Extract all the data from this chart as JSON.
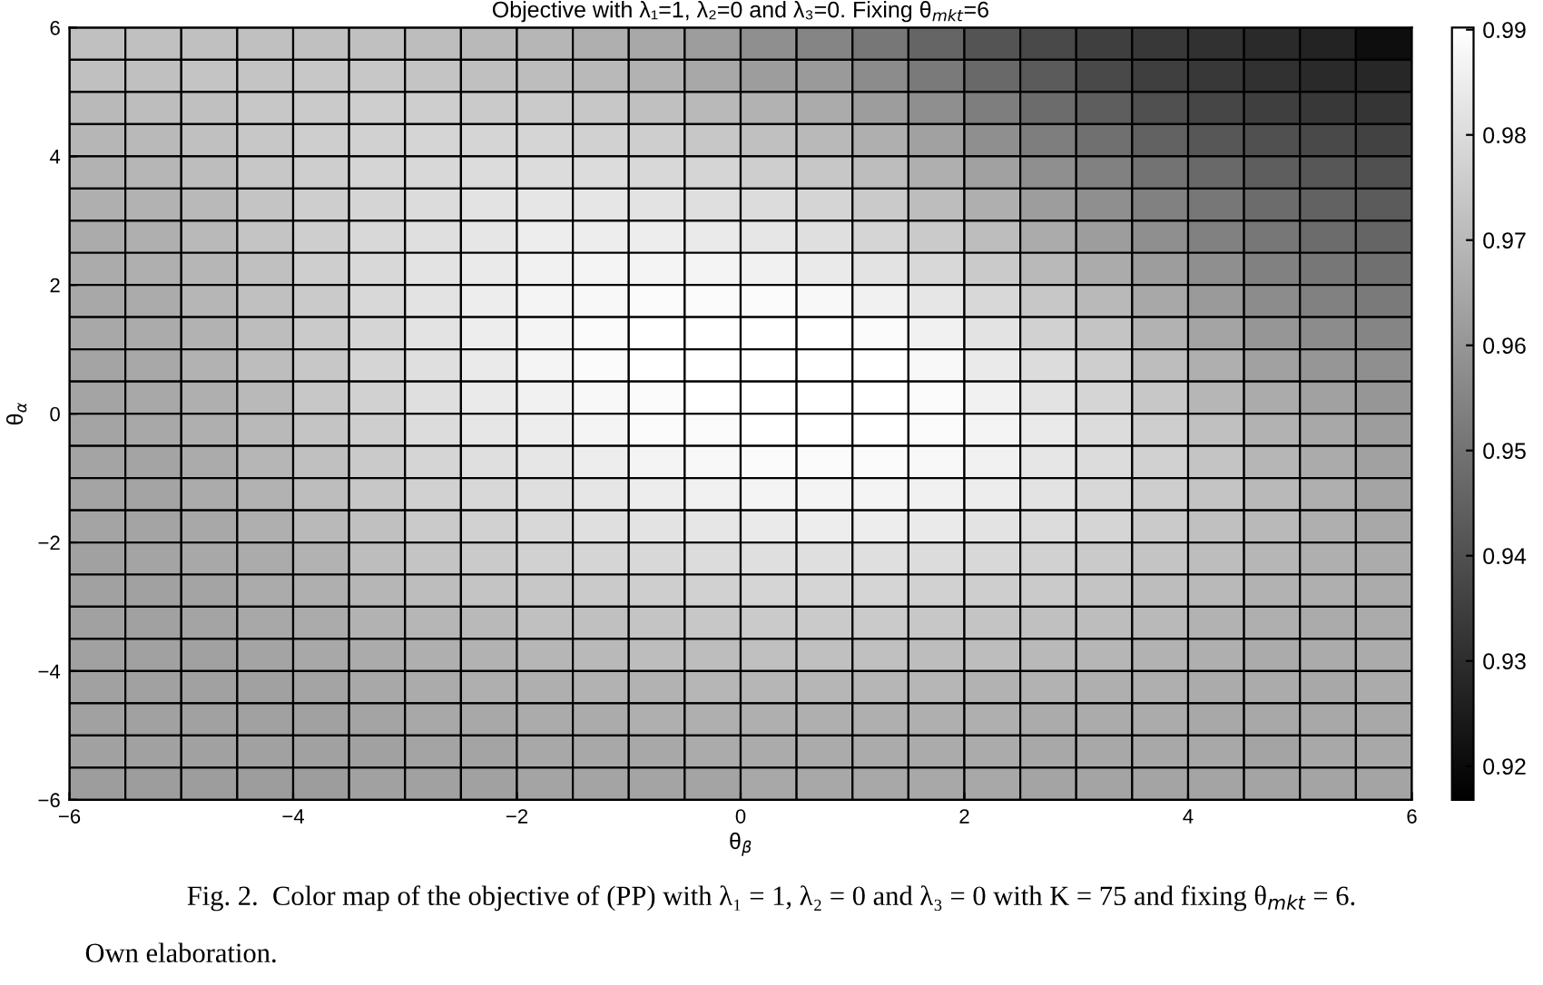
{
  "chart_data": {
    "type": "heatmap",
    "title": "Objective with λ₁=1, λ₂=0 and λ₃=0. Fixing θ$_{mkt}$=6",
    "xlabel": "θ$_{β}$",
    "ylabel": "θ$_{α}$",
    "annotations": [
      "Fig. 2.  Color map of the objective of (PP) with λ₁ = 1, λ₂ = 0 and λ₃ = 0 with K = 75 and fixing θ$_{mkt}$ = 6.",
      "Own elaboration."
    ],
    "xlim": [
      -6,
      6
    ],
    "ylim": [
      -6,
      6
    ],
    "xticks": [
      {
        "value": -6,
        "label": "−6"
      },
      {
        "value": -4,
        "label": "−4"
      },
      {
        "value": -2,
        "label": "−2"
      },
      0,
      2,
      4,
      6
    ],
    "yticks": [
      {
        "value": -6,
        "label": "−6"
      },
      {
        "value": -4,
        "label": "−4"
      },
      {
        "value": -2,
        "label": "−2"
      },
      0,
      2,
      4,
      6
    ],
    "clim": [
      0.9168,
      0.9902
    ],
    "cticks": [
      0.92,
      0.93,
      0.94,
      0.95,
      0.96,
      0.97,
      0.98,
      0.99
    ],
    "cells": [
      [
        0.972,
        0.972,
        0.972,
        0.972,
        0.972,
        0.972,
        0.971,
        0.97,
        0.969,
        0.967,
        0.965,
        0.962,
        0.958,
        0.955,
        0.951,
        0.946,
        0.941,
        0.938,
        0.935,
        0.933,
        0.931,
        0.929,
        0.927,
        0.921
      ],
      [
        0.972,
        0.972,
        0.973,
        0.973,
        0.974,
        0.974,
        0.973,
        0.972,
        0.971,
        0.97,
        0.968,
        0.965,
        0.962,
        0.961,
        0.957,
        0.952,
        0.947,
        0.943,
        0.938,
        0.935,
        0.933,
        0.931,
        0.929,
        0.928
      ],
      [
        0.97,
        0.971,
        0.972,
        0.974,
        0.975,
        0.976,
        0.976,
        0.975,
        0.975,
        0.974,
        0.972,
        0.97,
        0.968,
        0.966,
        0.962,
        0.958,
        0.953,
        0.948,
        0.944,
        0.94,
        0.937,
        0.935,
        0.933,
        0.932
      ],
      [
        0.969,
        0.97,
        0.972,
        0.974,
        0.976,
        0.977,
        0.978,
        0.978,
        0.978,
        0.977,
        0.976,
        0.974,
        0.972,
        0.97,
        0.967,
        0.963,
        0.958,
        0.953,
        0.949,
        0.945,
        0.942,
        0.94,
        0.938,
        0.936
      ],
      [
        0.968,
        0.969,
        0.971,
        0.974,
        0.976,
        0.978,
        0.979,
        0.98,
        0.98,
        0.98,
        0.979,
        0.978,
        0.976,
        0.974,
        0.971,
        0.967,
        0.963,
        0.958,
        0.954,
        0.95,
        0.947,
        0.944,
        0.942,
        0.94
      ],
      [
        0.967,
        0.968,
        0.97,
        0.973,
        0.976,
        0.978,
        0.98,
        0.982,
        0.983,
        0.983,
        0.982,
        0.981,
        0.98,
        0.978,
        0.975,
        0.971,
        0.967,
        0.962,
        0.958,
        0.954,
        0.951,
        0.948,
        0.945,
        0.943
      ],
      [
        0.966,
        0.967,
        0.97,
        0.973,
        0.976,
        0.979,
        0.981,
        0.983,
        0.985,
        0.985,
        0.985,
        0.984,
        0.983,
        0.981,
        0.978,
        0.975,
        0.971,
        0.966,
        0.962,
        0.958,
        0.954,
        0.951,
        0.948,
        0.946
      ],
      [
        0.966,
        0.967,
        0.969,
        0.972,
        0.976,
        0.979,
        0.982,
        0.984,
        0.986,
        0.987,
        0.987,
        0.987,
        0.986,
        0.984,
        0.982,
        0.979,
        0.975,
        0.97,
        0.966,
        0.962,
        0.958,
        0.954,
        0.951,
        0.949
      ],
      [
        0.965,
        0.966,
        0.969,
        0.972,
        0.975,
        0.979,
        0.982,
        0.985,
        0.987,
        0.988,
        0.989,
        0.989,
        0.989,
        0.988,
        0.986,
        0.983,
        0.979,
        0.974,
        0.97,
        0.965,
        0.961,
        0.957,
        0.954,
        0.952
      ],
      [
        0.965,
        0.966,
        0.968,
        0.971,
        0.975,
        0.978,
        0.982,
        0.985,
        0.987,
        0.989,
        0.99,
        0.99,
        0.99,
        0.99,
        0.989,
        0.986,
        0.982,
        0.977,
        0.973,
        0.968,
        0.964,
        0.96,
        0.957,
        0.955
      ],
      [
        0.964,
        0.965,
        0.968,
        0.971,
        0.974,
        0.978,
        0.981,
        0.984,
        0.987,
        0.989,
        0.99,
        0.99,
        0.99,
        0.99,
        0.99,
        0.988,
        0.984,
        0.98,
        0.976,
        0.971,
        0.967,
        0.963,
        0.96,
        0.958
      ],
      [
        0.964,
        0.965,
        0.967,
        0.97,
        0.974,
        0.977,
        0.981,
        0.984,
        0.986,
        0.988,
        0.989,
        0.99,
        0.99,
        0.99,
        0.99,
        0.989,
        0.986,
        0.982,
        0.978,
        0.974,
        0.969,
        0.966,
        0.963,
        0.96
      ],
      [
        0.964,
        0.965,
        0.967,
        0.97,
        0.973,
        0.976,
        0.98,
        0.983,
        0.985,
        0.987,
        0.989,
        0.989,
        0.99,
        0.99,
        0.99,
        0.989,
        0.987,
        0.984,
        0.98,
        0.976,
        0.972,
        0.968,
        0.965,
        0.962
      ],
      [
        0.964,
        0.964,
        0.966,
        0.969,
        0.972,
        0.975,
        0.978,
        0.981,
        0.983,
        0.985,
        0.987,
        0.988,
        0.989,
        0.989,
        0.989,
        0.988,
        0.986,
        0.983,
        0.98,
        0.977,
        0.973,
        0.969,
        0.966,
        0.963
      ],
      [
        0.964,
        0.964,
        0.966,
        0.968,
        0.971,
        0.974,
        0.977,
        0.979,
        0.981,
        0.983,
        0.985,
        0.986,
        0.987,
        0.987,
        0.987,
        0.986,
        0.985,
        0.982,
        0.979,
        0.976,
        0.973,
        0.97,
        0.967,
        0.964
      ],
      [
        0.964,
        0.964,
        0.965,
        0.967,
        0.97,
        0.972,
        0.975,
        0.977,
        0.979,
        0.981,
        0.982,
        0.983,
        0.984,
        0.985,
        0.985,
        0.984,
        0.982,
        0.98,
        0.978,
        0.975,
        0.972,
        0.97,
        0.967,
        0.965
      ],
      [
        0.963,
        0.964,
        0.965,
        0.966,
        0.968,
        0.971,
        0.973,
        0.975,
        0.977,
        0.978,
        0.979,
        0.98,
        0.981,
        0.981,
        0.981,
        0.98,
        0.979,
        0.977,
        0.975,
        0.973,
        0.971,
        0.969,
        0.967,
        0.966
      ],
      [
        0.963,
        0.963,
        0.964,
        0.966,
        0.967,
        0.969,
        0.971,
        0.973,
        0.974,
        0.975,
        0.976,
        0.977,
        0.978,
        0.978,
        0.978,
        0.977,
        0.976,
        0.975,
        0.973,
        0.971,
        0.97,
        0.968,
        0.967,
        0.966
      ],
      [
        0.963,
        0.963,
        0.964,
        0.965,
        0.966,
        0.968,
        0.969,
        0.97,
        0.972,
        0.972,
        0.973,
        0.974,
        0.975,
        0.975,
        0.975,
        0.974,
        0.973,
        0.972,
        0.971,
        0.97,
        0.968,
        0.967,
        0.966,
        0.966
      ],
      [
        0.963,
        0.963,
        0.963,
        0.964,
        0.965,
        0.966,
        0.967,
        0.968,
        0.969,
        0.97,
        0.971,
        0.971,
        0.972,
        0.972,
        0.972,
        0.971,
        0.971,
        0.97,
        0.969,
        0.968,
        0.967,
        0.966,
        0.966,
        0.966
      ],
      [
        0.963,
        0.963,
        0.963,
        0.963,
        0.964,
        0.965,
        0.966,
        0.967,
        0.967,
        0.968,
        0.968,
        0.969,
        0.969,
        0.969,
        0.969,
        0.969,
        0.968,
        0.968,
        0.967,
        0.967,
        0.966,
        0.966,
        0.965,
        0.966
      ],
      [
        0.963,
        0.963,
        0.963,
        0.963,
        0.963,
        0.964,
        0.965,
        0.965,
        0.966,
        0.966,
        0.967,
        0.967,
        0.967,
        0.967,
        0.967,
        0.967,
        0.967,
        0.966,
        0.966,
        0.966,
        0.965,
        0.965,
        0.965,
        0.965
      ],
      [
        0.963,
        0.963,
        0.963,
        0.963,
        0.963,
        0.963,
        0.964,
        0.964,
        0.965,
        0.965,
        0.965,
        0.966,
        0.966,
        0.966,
        0.966,
        0.966,
        0.966,
        0.965,
        0.965,
        0.965,
        0.965,
        0.964,
        0.965,
        0.965
      ],
      [
        0.962,
        0.962,
        0.962,
        0.962,
        0.962,
        0.963,
        0.963,
        0.963,
        0.964,
        0.964,
        0.964,
        0.964,
        0.965,
        0.965,
        0.965,
        0.965,
        0.965,
        0.964,
        0.964,
        0.964,
        0.964,
        0.964,
        0.964,
        0.964
      ]
    ]
  }
}
